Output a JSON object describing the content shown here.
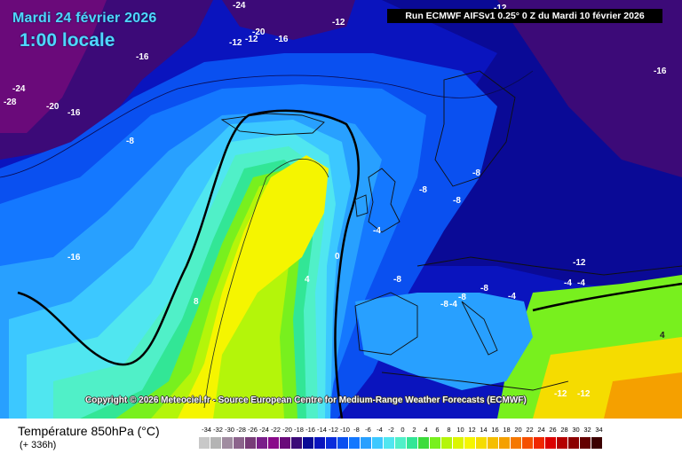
{
  "header": {
    "date": "Mardi 24 février 2026",
    "time": "1:00 locale",
    "run": "Run ECMWF AIFSv1 0.25° 0 Z du Mardi 10 février 2026"
  },
  "copyright": "Copyright © 2026 Meteociel.fr - Source European Centre for Medium-Range Weather Forecasts (ECMWF)",
  "footer": {
    "parameter": "Température 850hPa (°C)",
    "lead_time": "(+ 336h)"
  },
  "legend": {
    "labels": [
      "-34",
      "-32",
      "-30",
      "-28",
      "-26",
      "-24",
      "-22",
      "-20",
      "-18",
      "-16",
      "-14",
      "-12",
      "-10",
      "-8",
      "-6",
      "-4",
      "-2",
      "0",
      "2",
      "4",
      "6",
      "8",
      "10",
      "12",
      "14",
      "16",
      "18",
      "20",
      "22",
      "24",
      "26",
      "28",
      "30",
      "32",
      "34"
    ],
    "colors": [
      "#c8c8c8",
      "#b4b4b4",
      "#a08ca0",
      "#8c648c",
      "#783c78",
      "#7a1e8a",
      "#8a0a8a",
      "#6a0a7a",
      "#3c0a78",
      "#0a0a96",
      "#0a14be",
      "#0a2ddc",
      "#0a50f0",
      "#1478ff",
      "#28a0ff",
      "#3cc8ff",
      "#50e6f0",
      "#50f0c8",
      "#32e696",
      "#3cdc3c",
      "#78f01e",
      "#b4f50a",
      "#dcf500",
      "#f5f500",
      "#f5dc00",
      "#f5be00",
      "#f5a000",
      "#f57800",
      "#f55000",
      "#f02800",
      "#dc0000",
      "#b40000",
      "#8c0000",
      "#640000",
      "#3c0000"
    ]
  },
  "map": {
    "isotherm_labels": [
      "-24",
      "-20",
      "-16",
      "-12",
      "-12",
      "-12",
      "-16",
      "-24",
      "-28",
      "-20",
      "-16",
      "-8",
      "-16",
      "-12",
      "-16",
      "-8",
      "-8",
      "-8",
      "-8",
      "-4",
      "0",
      "4",
      "8",
      "-12",
      "-4",
      "-4",
      "-8",
      "-8",
      "-4",
      "-8",
      "-4",
      "4",
      "-12",
      "-12"
    ]
  }
}
